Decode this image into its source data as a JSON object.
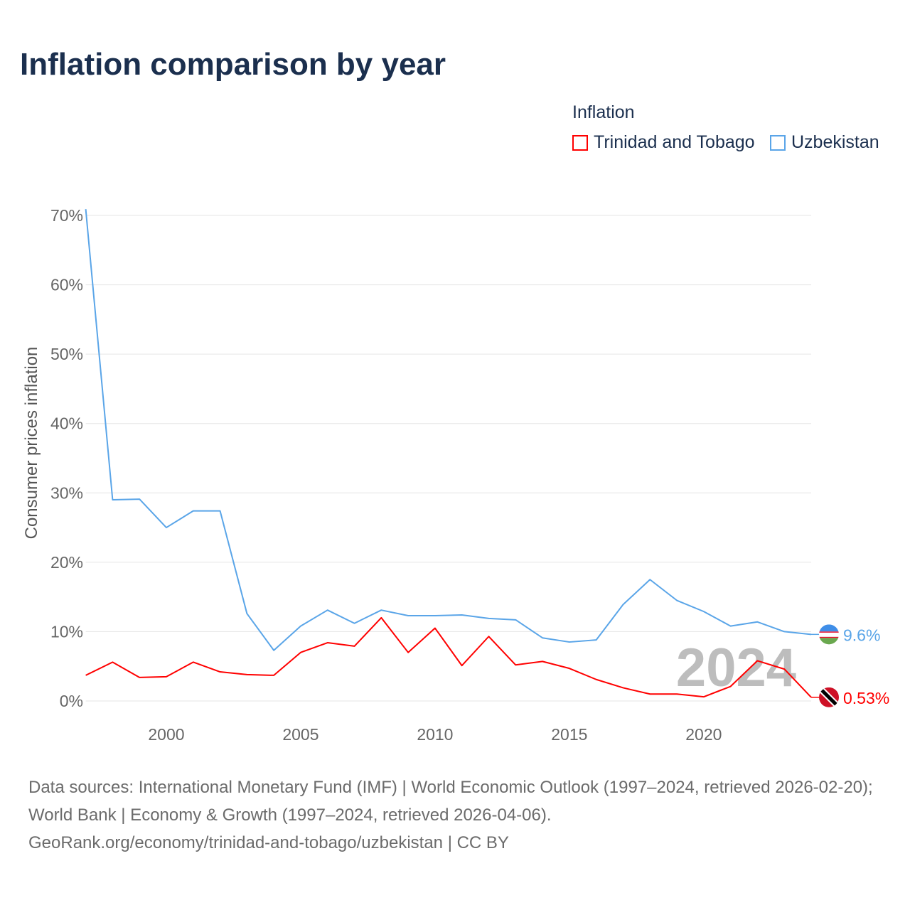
{
  "title": "Inflation comparison by year",
  "legend": {
    "title": "Inflation",
    "items": [
      {
        "label": "Trinidad and Tobago",
        "color": "#ff0000"
      },
      {
        "label": "Uzbekistan",
        "color": "#5aa5e8"
      }
    ]
  },
  "year_watermark": "2024",
  "footer": {
    "line1": "Data sources: International Monetary Fund (IMF) | World Economic Outlook (1997–2024, retrieved 2026-02-20); World Bank | Economy & Growth (1997–2024, retrieved 2026-04-06).",
    "line2": "GeoRank.org/economy/trinidad-and-tobago/uzbekistan | CC BY"
  },
  "chart_data": {
    "type": "line",
    "title": "Inflation comparison by year",
    "xlabel": "",
    "ylabel": "Consumer prices inflation",
    "xlim": [
      1997,
      2024
    ],
    "ylim": [
      0,
      70
    ],
    "grid": true,
    "legend_placement": "top-right",
    "x_ticks": [
      "2000",
      "2005",
      "2010",
      "2015",
      "2020"
    ],
    "y_ticks": [
      "0%",
      "10%",
      "20%",
      "30%",
      "40%",
      "50%",
      "60%",
      "70%"
    ],
    "x": [
      1997,
      1998,
      1999,
      2000,
      2001,
      2002,
      2003,
      2004,
      2005,
      2006,
      2007,
      2008,
      2009,
      2010,
      2011,
      2012,
      2013,
      2014,
      2015,
      2016,
      2017,
      2018,
      2019,
      2020,
      2021,
      2022,
      2023,
      2024
    ],
    "series": [
      {
        "name": "Trinidad and Tobago",
        "color": "#ff0000",
        "end_label": "0.53%",
        "values": [
          3.7,
          5.6,
          3.4,
          3.5,
          5.6,
          4.2,
          3.8,
          3.7,
          7.0,
          8.4,
          7.9,
          12.0,
          7.0,
          10.5,
          5.1,
          9.3,
          5.2,
          5.7,
          4.7,
          3.1,
          1.9,
          1.0,
          1.0,
          0.6,
          2.1,
          5.8,
          4.6,
          0.53
        ]
      },
      {
        "name": "Uzbekistan",
        "color": "#5aa5e8",
        "end_label": "9.6%",
        "values": [
          70.9,
          29.0,
          29.1,
          25.0,
          27.4,
          27.4,
          12.6,
          7.3,
          10.8,
          13.1,
          11.2,
          13.1,
          12.3,
          12.3,
          12.4,
          11.9,
          11.7,
          9.1,
          8.5,
          8.8,
          13.9,
          17.5,
          14.5,
          12.9,
          10.8,
          11.4,
          10.0,
          9.6
        ]
      }
    ]
  }
}
